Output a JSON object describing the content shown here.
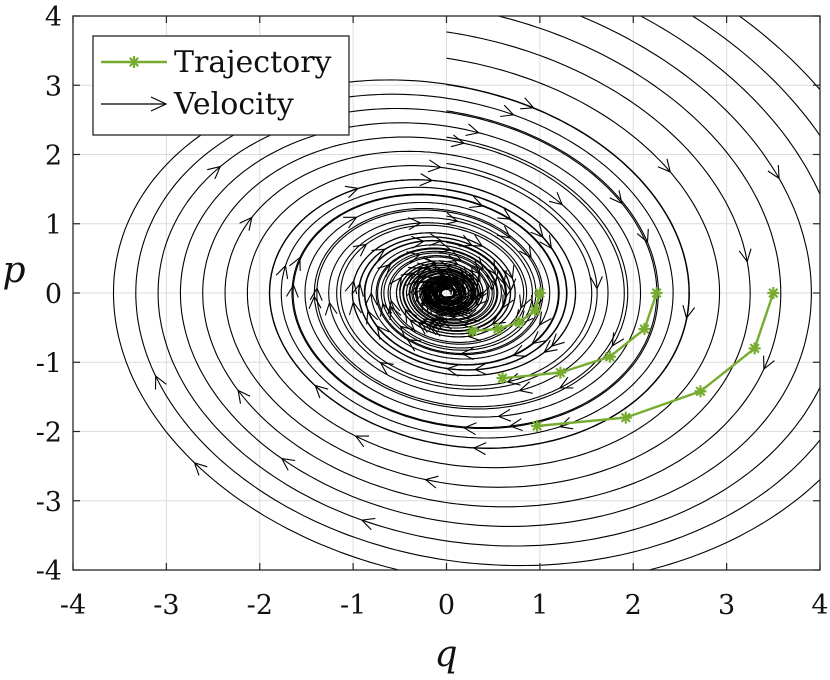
{
  "chart_data": {
    "type": "line",
    "title": "",
    "xlabel": "q",
    "ylabel": "p",
    "xlim": [
      -4,
      4
    ],
    "ylim": [
      -4,
      4
    ],
    "xticks": [
      "-4",
      "-3",
      "-2",
      "-1",
      "0",
      "1",
      "2",
      "3",
      "4"
    ],
    "yticks": [
      "-4",
      "-3",
      "-2",
      "-1",
      "0",
      "1",
      "2",
      "3",
      "4"
    ],
    "grid": true,
    "legend_position": "top-left",
    "legend": [
      {
        "label": "Trajectory",
        "marker": "asterisk",
        "color": "#77AC30"
      },
      {
        "label": "Velocity",
        "marker": "arrow",
        "color": "#000000"
      }
    ],
    "colors": {
      "trajectory": "#77AC30",
      "velocity": "#000000"
    },
    "series": [
      {
        "name": "Trajectory",
        "x": [
          1.0,
          0.95,
          0.78,
          0.55,
          0.28
        ],
        "y": [
          0.0,
          -0.25,
          -0.42,
          -0.52,
          -0.55
        ]
      },
      {
        "name": "Trajectory",
        "x": [
          2.25,
          2.12,
          1.75,
          1.22,
          0.6
        ],
        "y": [
          0.0,
          -0.52,
          -0.92,
          -1.15,
          -1.23
        ]
      },
      {
        "name": "Trajectory",
        "x": [
          3.5,
          3.3,
          2.72,
          1.92,
          0.97
        ],
        "y": [
          0.0,
          -0.8,
          -1.42,
          -1.8,
          -1.92
        ]
      }
    ],
    "velocity_field": {
      "description": "streamlines spiraling inward toward the origin",
      "dq_dt": "p",
      "dp_dt": "-q - 0.2*p"
    }
  }
}
